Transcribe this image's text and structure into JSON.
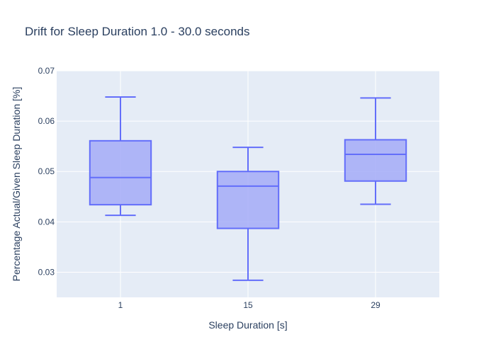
{
  "chart_data": {
    "type": "box",
    "title": "Drift for Sleep Duration 1.0 - 30.0 seconds",
    "xlabel": "Sleep Duration [s]",
    "ylabel": "Percentage Actual/Given Sleep Duration [%]",
    "categories": [
      "1",
      "15",
      "29"
    ],
    "ylim": [
      0.025,
      0.07
    ],
    "yticks": [
      "0.03",
      "0.04",
      "0.05",
      "0.06",
      "0.07"
    ],
    "ytick_values": [
      0.03,
      0.04,
      0.05,
      0.06,
      0.07
    ],
    "boxes": [
      {
        "category": "1",
        "min": 0.0413,
        "q1": 0.0434,
        "median": 0.0488,
        "q3": 0.0561,
        "max": 0.0648
      },
      {
        "category": "15",
        "min": 0.0284,
        "q1": 0.0387,
        "median": 0.0471,
        "q3": 0.05,
        "max": 0.0548
      },
      {
        "category": "29",
        "min": 0.0435,
        "q1": 0.0481,
        "median": 0.0534,
        "q3": 0.0563,
        "max": 0.0646
      }
    ],
    "grid": true,
    "colors": {
      "plot_bg": "#e5ecf6",
      "grid": "#ffffff",
      "box_line": "#636efa",
      "box_fill": "#a5acf7",
      "text": "#2a3f5f"
    }
  }
}
